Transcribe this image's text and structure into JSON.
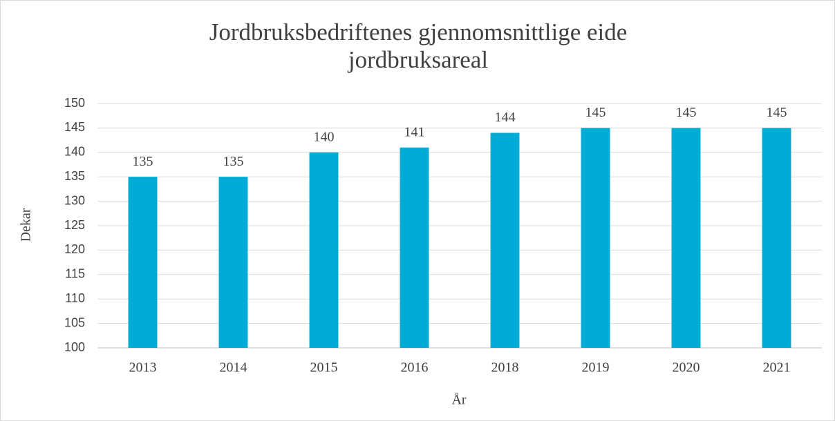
{
  "chart_data": {
    "type": "bar",
    "title": "Jordbruksbedriftenes gjennomsnittlige eide jordbruksareal",
    "x_label": "År",
    "y_label": "Dekar",
    "categories": [
      "2013",
      "2014",
      "2015",
      "2016",
      "2018",
      "2019",
      "2020",
      "2021"
    ],
    "values": [
      135,
      135,
      140,
      141,
      144,
      145,
      145,
      145
    ],
    "color": "#00acd6",
    "ylim": [
      100,
      150
    ],
    "yticks": [
      100,
      105,
      110,
      115,
      120,
      125,
      130,
      135,
      140,
      145,
      150
    ],
    "grid": true,
    "data_labels": true
  }
}
